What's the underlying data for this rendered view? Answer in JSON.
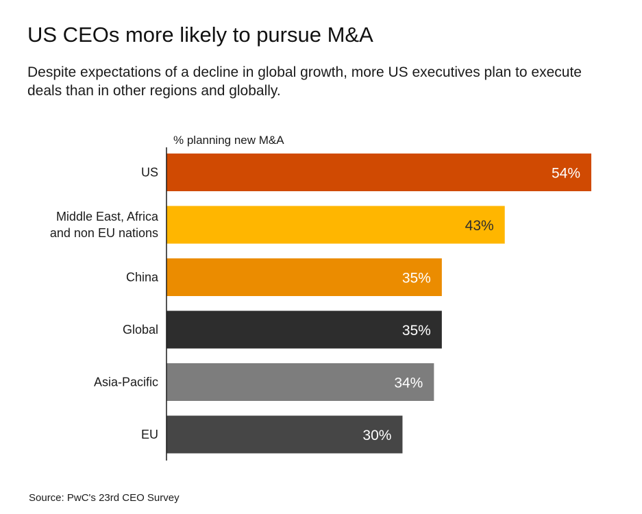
{
  "chart_data": {
    "type": "bar",
    "orientation": "horizontal",
    "title": "US CEOs more likely to pursue M&A",
    "subtitle": "Despite expectations of a decline in global growth, more US executives plan to execute deals than in other regions and globally.",
    "axis_label": "% planning new M&A",
    "categories": [
      [
        "US"
      ],
      [
        "Middle East, Africa",
        "and non EU nations"
      ],
      [
        "China"
      ],
      [
        "Global"
      ],
      [
        "Asia-Pacific"
      ],
      [
        "EU"
      ]
    ],
    "values": [
      54,
      43,
      35,
      35,
      34,
      30
    ],
    "value_labels": [
      "54%",
      "43%",
      "35%",
      "35%",
      "34%",
      "30%"
    ],
    "colors": [
      "#d04a02",
      "#ffb600",
      "#eb8c00",
      "#2d2d2d",
      "#7d7d7d",
      "#464646"
    ],
    "label_colors": [
      "#ffffff",
      "#2d2d2d",
      "#ffffff",
      "#ffffff",
      "#ffffff",
      "#ffffff"
    ],
    "xlim": [
      0,
      54
    ],
    "grid": false,
    "legend": "none",
    "source": "Source: PwC's 23rd CEO Survey"
  }
}
